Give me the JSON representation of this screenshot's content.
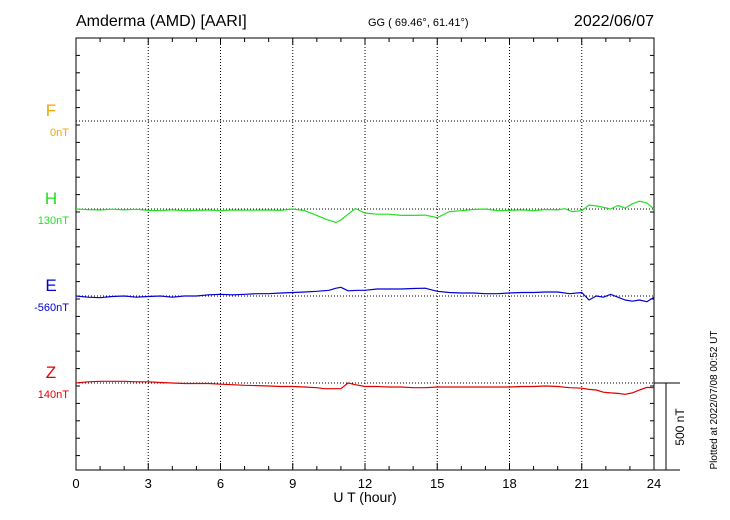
{
  "header": {
    "station": "Amderma (AMD)  [AARI]",
    "coords": "GG ( 69.46°,  61.41°)",
    "date": "2022/06/07"
  },
  "footer_note": "Plotted at 2022/07/08 00:52 UT",
  "scale_bar_label": "500 nT",
  "colors": {
    "F": "#f0a800",
    "H": "#22e022",
    "E": "#0000d8",
    "Z": "#e00000"
  },
  "chart_data": {
    "type": "line",
    "title": "Amderma (AMD)  [AARI]",
    "xlabel": "U T (hour)",
    "ylabel": "",
    "xlim": [
      0,
      24
    ],
    "x_ticks": [
      0,
      3,
      6,
      9,
      12,
      15,
      18,
      21,
      24
    ],
    "grid": true,
    "scale_nT": 500,
    "series": [
      {
        "name": "F",
        "baseline_label": "0nT",
        "baseline_nT": 0,
        "x": [],
        "values": []
      },
      {
        "name": "H",
        "baseline_label": "130nT",
        "baseline_nT": 130,
        "x": [
          0,
          0.5,
          1,
          1.5,
          2,
          2.5,
          3,
          3.5,
          4,
          4.5,
          5,
          5.5,
          6,
          6.5,
          7,
          7.5,
          8,
          8.5,
          9,
          9.5,
          10,
          10.4,
          10.8,
          11,
          11.3,
          11.6,
          12,
          12.5,
          13,
          13.5,
          14,
          14.5,
          15,
          15.5,
          16,
          16.5,
          17,
          17.5,
          18,
          18.5,
          19,
          19.5,
          20,
          20.3,
          20.6,
          21,
          21.3,
          21.6,
          21.9,
          22.2,
          22.5,
          22.8,
          23.1,
          23.4,
          23.7,
          24
        ],
        "values": [
          130,
          126,
          124,
          129,
          125,
          128,
          122,
          120,
          125,
          121,
          122,
          124,
          120,
          124,
          123,
          123,
          124,
          122,
          130,
          120,
          93,
          70,
          53,
          67,
          100,
          133,
          107,
          100,
          100,
          93,
          93,
          95,
          80,
          115,
          120,
          127,
          130,
          120,
          122,
          125,
          120,
          127,
          125,
          132,
          115,
          120,
          153,
          148,
          140,
          130,
          150,
          135,
          160,
          175,
          165,
          130
        ]
      },
      {
        "name": "E",
        "baseline_label": "-560nT",
        "baseline_nT": -560,
        "x": [
          0,
          0.5,
          1,
          1.5,
          2,
          2.5,
          3,
          3.5,
          4,
          4.5,
          5,
          5.5,
          6,
          6.5,
          7,
          7.5,
          8,
          8.5,
          9,
          9.5,
          10,
          10.5,
          10.8,
          11,
          11.3,
          11.7,
          12,
          12.5,
          13,
          13.5,
          14,
          14.5,
          15,
          15.5,
          16,
          16.5,
          17,
          17.5,
          18,
          18.5,
          19,
          19.5,
          20,
          20.5,
          21,
          21.3,
          21.6,
          21.9,
          22.2,
          22.5,
          22.8,
          23.1,
          23.4,
          23.7,
          24
        ],
        "values": [
          -560,
          -567,
          -570,
          -563,
          -560,
          -567,
          -563,
          -560,
          -567,
          -560,
          -560,
          -553,
          -550,
          -553,
          -550,
          -547,
          -547,
          -543,
          -540,
          -537,
          -533,
          -527,
          -515,
          -510,
          -530,
          -527,
          -527,
          -520,
          -520,
          -520,
          -517,
          -515,
          -533,
          -540,
          -543,
          -543,
          -547,
          -547,
          -543,
          -540,
          -540,
          -537,
          -537,
          -547,
          -540,
          -583,
          -560,
          -567,
          -550,
          -567,
          -583,
          -590,
          -583,
          -593,
          -567
        ]
      },
      {
        "name": "Z",
        "baseline_label": "140nT",
        "baseline_nT": 140,
        "x": [
          0,
          0.5,
          1,
          1.5,
          2,
          2.5,
          3,
          3.5,
          4,
          4.5,
          5,
          5.5,
          6,
          6.5,
          7,
          7.5,
          8,
          8.5,
          9,
          9.5,
          10,
          10.3,
          10.7,
          11,
          11.3,
          11.6,
          12,
          12.5,
          13,
          13.5,
          14,
          14.5,
          15,
          15.5,
          16,
          16.5,
          17,
          17.5,
          18,
          18.5,
          19,
          19.5,
          20,
          20.5,
          21,
          21.3,
          21.6,
          21.9,
          22.2,
          22.5,
          22.8,
          23.1,
          23.4,
          23.7,
          24
        ],
        "values": [
          140,
          147,
          150,
          150,
          150,
          147,
          147,
          143,
          140,
          137,
          137,
          137,
          133,
          130,
          127,
          125,
          123,
          120,
          120,
          117,
          113,
          107,
          107,
          107,
          140,
          130,
          120,
          120,
          117,
          117,
          113,
          113,
          117,
          117,
          117,
          117,
          117,
          117,
          117,
          120,
          120,
          123,
          120,
          113,
          110,
          103,
          100,
          87,
          83,
          80,
          75,
          83,
          100,
          115,
          113
        ]
      }
    ]
  }
}
